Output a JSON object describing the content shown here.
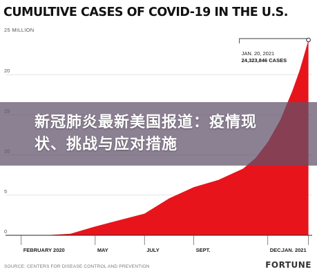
{
  "chart_data": {
    "type": "area",
    "title": "CUMULTIVE CASES OF COVID-19 IN THE U.S.",
    "ylabel": "25 MILLION",
    "xlabel": "",
    "ylim": [
      0,
      25
    ],
    "yticks": [
      0,
      5,
      10,
      15,
      20
    ],
    "ytick_labels": [
      "0",
      "5",
      "10",
      "15",
      "20"
    ],
    "x_tick_labels": [
      "FEBRUARY 2020",
      "MAY",
      "JULY",
      "SEPT.",
      "DEC.",
      "JAN. 2021"
    ],
    "x_tick_positions": [
      0,
      3,
      5,
      7,
      10,
      11.65
    ],
    "xlim": [
      -0.3,
      11.8
    ],
    "grid": true,
    "x": [
      0,
      1,
      2,
      3,
      4,
      5,
      6,
      7,
      8,
      9,
      9.5,
      10,
      10.5,
      11,
      11.3,
      11.65
    ],
    "values": [
      0,
      0.01,
      0.2,
      1.1,
      1.9,
      2.7,
      4.6,
      6.0,
      6.9,
      8.3,
      9.6,
      11.6,
      14.3,
      18.0,
      20.6,
      24.3
    ],
    "annotation": {
      "date": "JAN. 20, 2021",
      "value_label": "24,323,846 CASES",
      "x": 11.65,
      "y": 24.32
    },
    "color": "#e8141c",
    "source": "SOURCE: CENTERS FOR DISEASE CONTROL AND PREVENTION",
    "brand": "FORTUNE"
  },
  "overlay": {
    "text": "新冠肺炎最新美国报道：疫情现状、挑战与应对措施"
  }
}
